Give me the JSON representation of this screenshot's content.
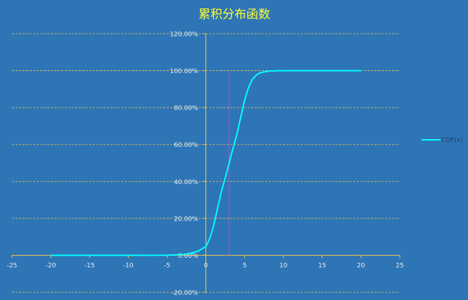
{
  "chart_data": {
    "type": "line",
    "title": "累积分布函数",
    "xlim": [
      -25,
      25
    ],
    "ylim": [
      -0.2,
      1.2
    ],
    "x_ticks": [
      -25,
      -20,
      -15,
      -10,
      -5,
      0,
      5,
      10,
      15,
      20,
      25
    ],
    "x_tick_labels": [
      "-25",
      "-20",
      "-15",
      "-10",
      "-5",
      "0",
      "5",
      "10",
      "15",
      "20",
      "25"
    ],
    "y_ticks": [
      -0.2,
      0,
      0.2,
      0.4,
      0.6,
      0.8,
      1.0,
      1.2
    ],
    "y_tick_labels": [
      "-20.00%",
      "0.00%",
      "20.00%",
      "40.00%",
      "60.00%",
      "80.00%",
      "100.00%",
      "120.00%"
    ],
    "grid": true,
    "legend_position": "right",
    "series": [
      {
        "name": "CDF(x)",
        "color": "#00ffff",
        "x": [
          -20,
          -15,
          -10,
          -5,
          -3,
          -2,
          -1,
          0,
          0.5,
          1,
          1.5,
          2,
          2.5,
          3,
          3.5,
          4,
          4.5,
          5,
          5.5,
          6,
          6.5,
          7,
          8,
          9,
          10,
          12,
          15,
          20
        ],
        "y": [
          0,
          0,
          0,
          0.001,
          0.004,
          0.011,
          0.023,
          0.047,
          0.091,
          0.159,
          0.252,
          0.345,
          0.42,
          0.5,
          0.58,
          0.655,
          0.749,
          0.841,
          0.909,
          0.953,
          0.976,
          0.989,
          0.997,
          0.999,
          1,
          1,
          1,
          1
        ]
      }
    ],
    "reference_line": {
      "x": 3,
      "y_top": 1.0,
      "color": "#b04fd0"
    },
    "axis_color": "#f5c542",
    "grid_color": "#f5c542"
  }
}
